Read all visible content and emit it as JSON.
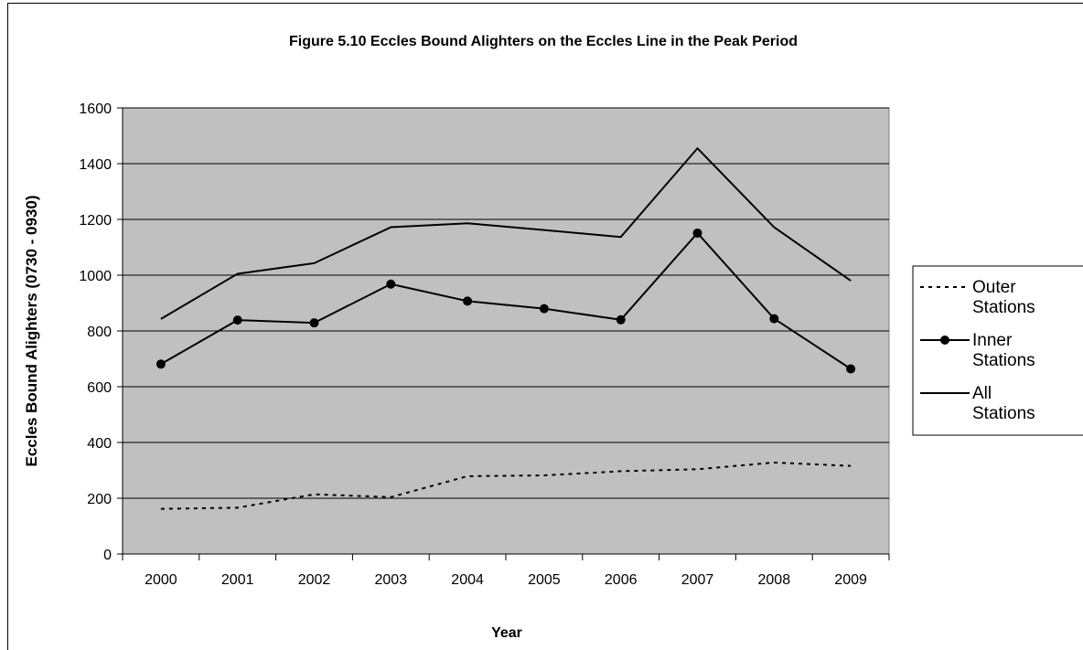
{
  "chart_data": {
    "type": "line",
    "title": "Figure 5.10 Eccles Bound Alighters on the Eccles Line in the Peak Period",
    "xlabel": "Year",
    "ylabel": "Eccles Bound Alighters (0730 - 0930)",
    "categories": [
      "2000",
      "2001",
      "2002",
      "2003",
      "2004",
      "2005",
      "2006",
      "2007",
      "2008",
      "2009"
    ],
    "ylim": [
      0,
      1600
    ],
    "yticks": [
      "0",
      "200",
      "400",
      "600",
      "800",
      "1000",
      "1200",
      "1400",
      "1600"
    ],
    "grid": true,
    "plot_background": "#c0c0c0",
    "legend_position": "right",
    "series": [
      {
        "name": "Outer Stations",
        "style": "dashed",
        "color": "#000000",
        "values": [
          162,
          166,
          214,
          204,
          279,
          282,
          297,
          304,
          328,
          316
        ]
      },
      {
        "name": "Inner Stations",
        "style": "solid-markers",
        "color": "#000000",
        "values": [
          681,
          839,
          829,
          968,
          907,
          880,
          840,
          1151,
          844,
          664
        ]
      },
      {
        "name": "All Stations",
        "style": "solid",
        "color": "#000000",
        "values": [
          843,
          1005,
          1043,
          1172,
          1186,
          1162,
          1137,
          1455,
          1172,
          980
        ]
      }
    ]
  }
}
